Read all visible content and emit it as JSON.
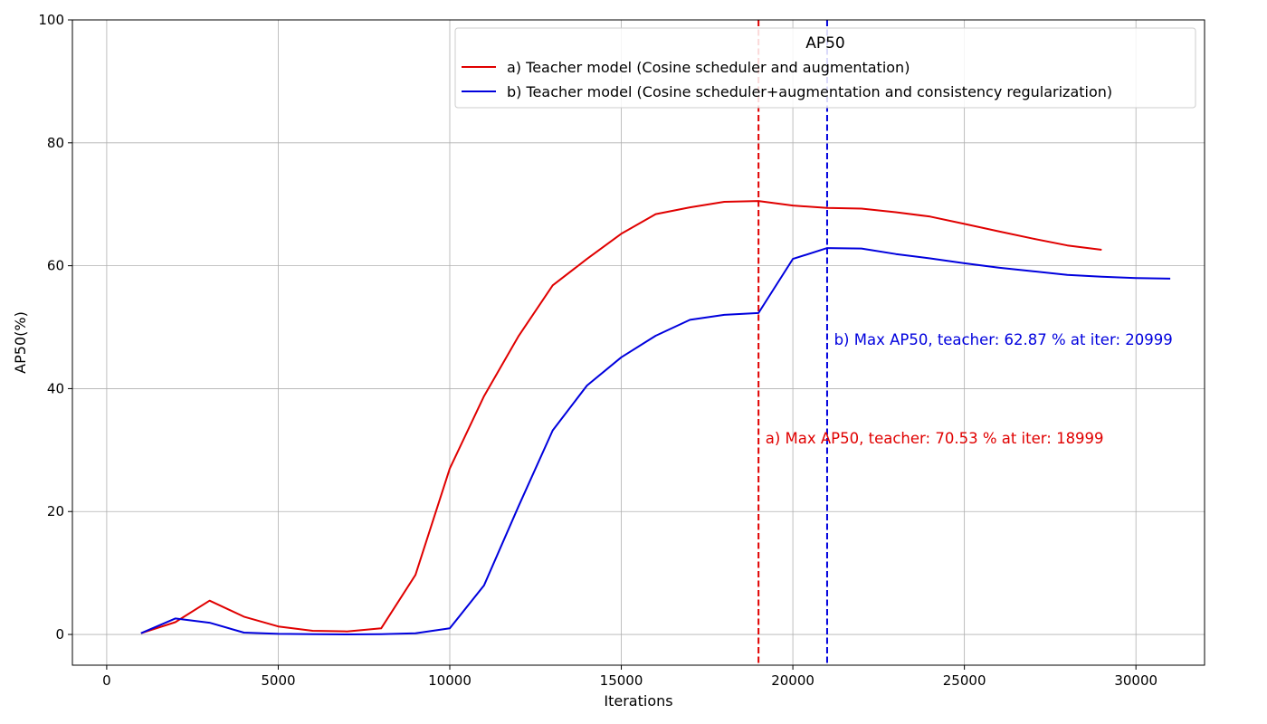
{
  "chart_data": {
    "type": "line",
    "title": "",
    "xlabel": "Iterations",
    "ylabel": "AP50(%)",
    "xlim": [
      -1000,
      32000
    ],
    "ylim": [
      -5,
      100
    ],
    "xticks": [
      0,
      5000,
      10000,
      15000,
      20000,
      25000,
      30000
    ],
    "yticks": [
      0,
      20,
      40,
      60,
      80,
      100
    ],
    "grid": true,
    "legend": {
      "title": "AP50",
      "placement": "top-right"
    },
    "series": [
      {
        "name": "a) Teacher model (Cosine scheduler and augmentation)",
        "color": "#e00000",
        "x": [
          1000,
          2000,
          3000,
          4000,
          5000,
          6000,
          7000,
          8000,
          9000,
          10000,
          11000,
          12000,
          13000,
          14000,
          15000,
          16000,
          17000,
          18000,
          18999,
          20000,
          21000,
          22000,
          23000,
          24000,
          25000,
          26000,
          27000,
          28000,
          29000
        ],
        "y": [
          0.2,
          2.0,
          5.5,
          2.9,
          1.3,
          0.6,
          0.5,
          1.0,
          9.7,
          27.0,
          38.8,
          48.5,
          56.8,
          61.1,
          65.2,
          68.4,
          69.5,
          70.4,
          70.53,
          69.8,
          69.4,
          69.3,
          68.7,
          68.0,
          66.8,
          65.6,
          64.4,
          63.3,
          62.6
        ]
      },
      {
        "name": "b) Teacher model (Cosine scheduler+augmentation and consistency regularization)",
        "color": "#0000dd",
        "x": [
          1000,
          2000,
          3000,
          4000,
          5000,
          6000,
          7000,
          8000,
          9000,
          10000,
          11000,
          12000,
          13000,
          14000,
          15000,
          16000,
          17000,
          18000,
          18999,
          20000,
          20999,
          22000,
          23000,
          24000,
          25000,
          26000,
          27000,
          28000,
          29000,
          30000,
          31000
        ],
        "y": [
          0.2,
          2.6,
          1.9,
          0.3,
          0.1,
          0.05,
          0.0,
          0.05,
          0.2,
          1.0,
          8.0,
          20.8,
          33.2,
          40.5,
          45.1,
          48.6,
          51.2,
          52.0,
          52.3,
          61.1,
          62.87,
          62.8,
          61.9,
          61.2,
          60.4,
          59.7,
          59.1,
          58.5,
          58.2,
          58.0,
          57.9
        ]
      }
    ],
    "vlines": [
      {
        "x": 18999,
        "color": "#e00000",
        "style": "dashed"
      },
      {
        "x": 20999,
        "color": "#0000dd",
        "style": "dashed"
      }
    ],
    "annotations": [
      {
        "text": "b) Max AP50, teacher: 62.87 % at iter: 20999",
        "x": 21200,
        "y": 48,
        "color": "#0000dd"
      },
      {
        "text": "a) Max AP50, teacher: 70.53 % at iter: 18999",
        "x": 19200,
        "y": 32,
        "color": "#e00000"
      }
    ]
  }
}
